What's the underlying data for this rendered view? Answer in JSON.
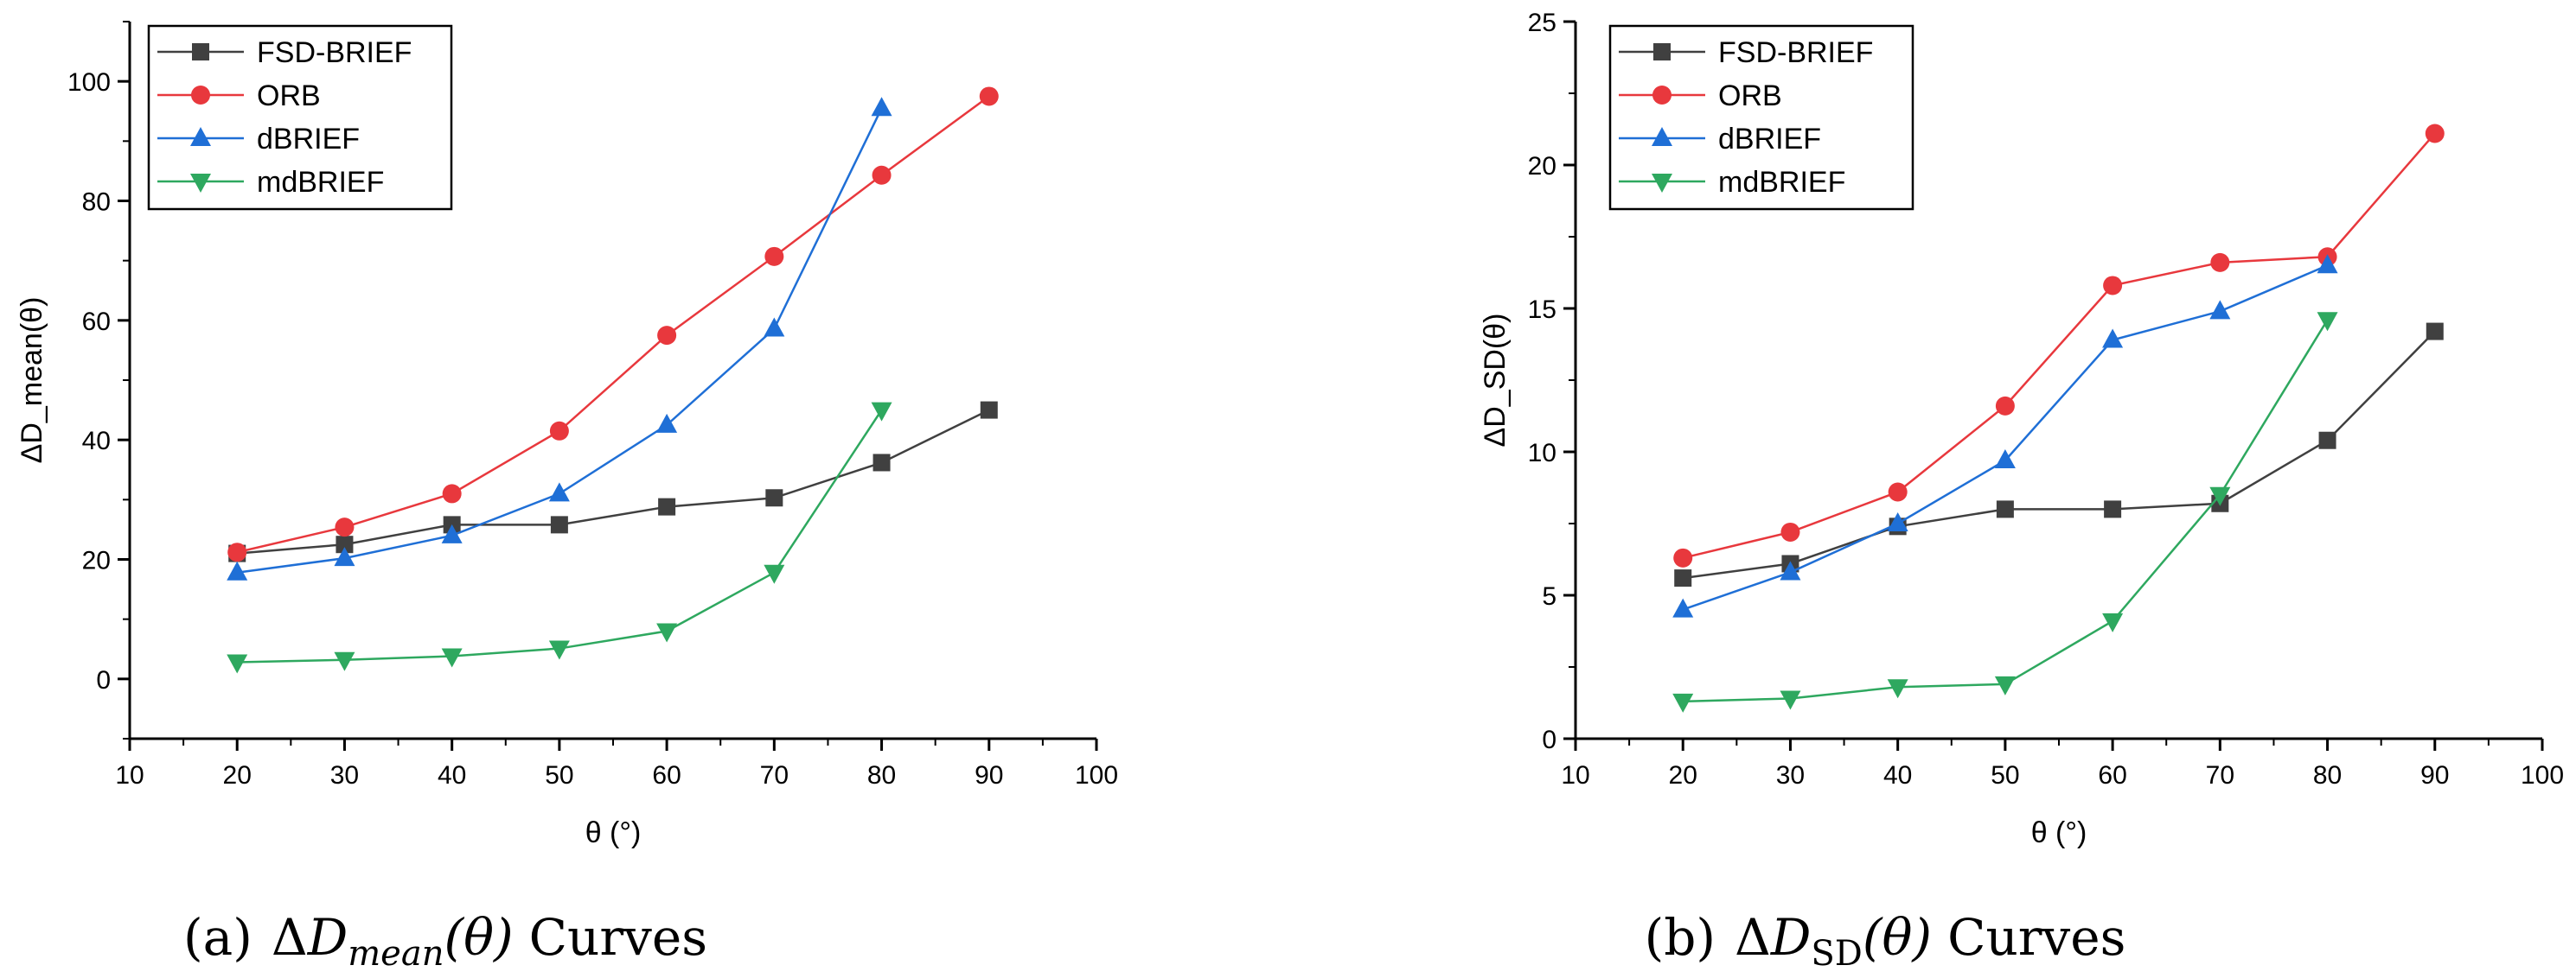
{
  "figure": {
    "panels": [
      {
        "caption_prefix": "(a)",
        "caption_math_delta": "Δ",
        "caption_math_var": "D",
        "caption_math_sub": "mean",
        "caption_math_arg": "(θ)",
        "caption_suffix": "Curves"
      },
      {
        "caption_prefix": "(b)",
        "caption_math_delta": "Δ",
        "caption_math_var": "D",
        "caption_math_sub": "SD",
        "caption_math_arg": "(θ)",
        "caption_suffix": "Curves"
      }
    ]
  },
  "chart_data": [
    {
      "type": "line",
      "xlabel": "θ (°)",
      "ylabel": "ΔD_mean(θ)",
      "xlim": [
        10,
        100
      ],
      "ylim": [
        -10,
        110
      ],
      "xticks": [
        10,
        20,
        30,
        40,
        50,
        60,
        70,
        80,
        90,
        100
      ],
      "yticks": [
        0,
        20,
        40,
        60,
        80,
        100
      ],
      "legend_position": "top-left",
      "series": [
        {
          "name": "FSD-BRIEF",
          "color": "#404040",
          "marker": "square",
          "x": [
            20,
            30,
            40,
            50,
            60,
            70,
            80,
            90
          ],
          "values": [
            21,
            22.5,
            25.8,
            25.8,
            28.8,
            30.3,
            36.2,
            45
          ]
        },
        {
          "name": "ORB",
          "color": "#e8383d",
          "marker": "circle",
          "x": [
            20,
            30,
            40,
            50,
            60,
            70,
            80,
            90
          ],
          "values": [
            21.2,
            25.4,
            31,
            41.5,
            57.5,
            70.7,
            84.3,
            97.5
          ]
        },
        {
          "name": "dBRIEF",
          "color": "#1f6fd6",
          "marker": "triangle-up",
          "x": [
            20,
            30,
            40,
            50,
            60,
            70,
            80
          ],
          "values": [
            17.8,
            20.2,
            24,
            31,
            42.5,
            58.6,
            95.5
          ]
        },
        {
          "name": "mdBRIEF",
          "color": "#2ea85f",
          "marker": "triangle-down",
          "x": [
            20,
            30,
            40,
            50,
            60,
            70,
            80
          ],
          "values": [
            2.8,
            3.2,
            3.8,
            5.1,
            8,
            17.8,
            45
          ]
        }
      ]
    },
    {
      "type": "line",
      "xlabel": "θ (°)",
      "ylabel": "ΔD_SD(θ)",
      "xlim": [
        10,
        100
      ],
      "ylim": [
        0,
        25
      ],
      "xticks": [
        10,
        20,
        30,
        40,
        50,
        60,
        70,
        80,
        90,
        100
      ],
      "yticks": [
        0,
        5,
        10,
        15,
        20,
        25
      ],
      "legend_position": "top-left",
      "series": [
        {
          "name": "FSD-BRIEF",
          "color": "#404040",
          "marker": "square",
          "x": [
            20,
            30,
            40,
            50,
            60,
            70,
            80,
            90
          ],
          "values": [
            5.6,
            6.1,
            7.4,
            8,
            8,
            8.2,
            10.4,
            14.2
          ]
        },
        {
          "name": "ORB",
          "color": "#e8383d",
          "marker": "circle",
          "x": [
            20,
            30,
            40,
            50,
            60,
            70,
            80,
            90
          ],
          "values": [
            6.3,
            7.2,
            8.6,
            11.6,
            15.8,
            16.6,
            16.8,
            21.1
          ]
        },
        {
          "name": "dBRIEF",
          "color": "#1f6fd6",
          "marker": "triangle-up",
          "x": [
            20,
            30,
            40,
            50,
            60,
            70,
            80
          ],
          "values": [
            4.5,
            5.8,
            7.5,
            9.7,
            13.9,
            14.9,
            16.5
          ]
        },
        {
          "name": "mdBRIEF",
          "color": "#2ea85f",
          "marker": "triangle-down",
          "x": [
            20,
            30,
            40,
            50,
            60,
            70,
            80
          ],
          "values": [
            1.3,
            1.4,
            1.8,
            1.9,
            4.1,
            8.5,
            14.6
          ]
        }
      ]
    }
  ]
}
